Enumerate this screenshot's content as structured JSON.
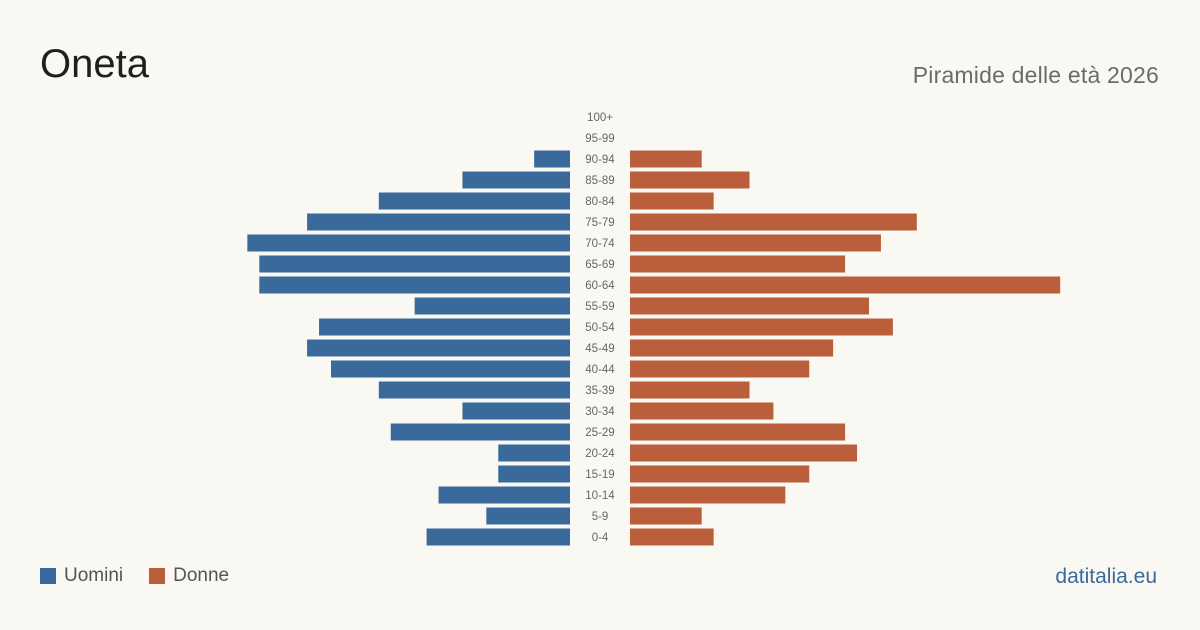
{
  "header": {
    "title": "Oneta",
    "subtitle": "Piramide delle età 2026"
  },
  "legend": {
    "men_label": "Uomini",
    "women_label": "Donne"
  },
  "brand": "datitalia.eu",
  "colors": {
    "men": "#3a6a9b",
    "women": "#bb5e3c",
    "age_label": "#666666"
  },
  "chart_data": {
    "type": "bar",
    "orientation": "horizontal-pyramid",
    "categories": [
      "100+",
      "95-99",
      "90-94",
      "85-89",
      "80-84",
      "75-79",
      "70-74",
      "65-69",
      "60-64",
      "55-59",
      "50-54",
      "45-49",
      "40-44",
      "35-39",
      "30-34",
      "25-29",
      "20-24",
      "15-19",
      "10-14",
      "5-9",
      "0-4"
    ],
    "series": [
      {
        "name": "Uomini",
        "values": [
          0,
          0,
          3,
          9,
          16,
          22,
          27,
          26,
          26,
          13,
          21,
          22,
          20,
          16,
          9,
          15,
          6,
          6,
          11,
          7,
          12
        ]
      },
      {
        "name": "Donne",
        "values": [
          0,
          0,
          6,
          10,
          7,
          24,
          21,
          18,
          36,
          20,
          22,
          17,
          15,
          10,
          12,
          18,
          19,
          15,
          13,
          6,
          7
        ]
      }
    ],
    "legend_position": "bottom-left",
    "grid": false
  }
}
